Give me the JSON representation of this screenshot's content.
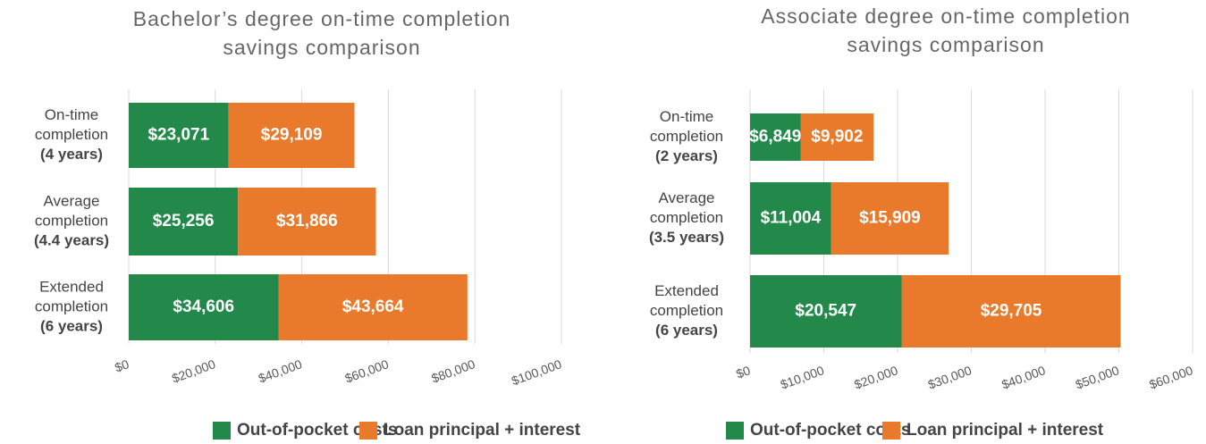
{
  "chart_data": [
    {
      "type": "stacked-barh",
      "title": [
        "Bachelor’s degree on-time completion",
        "savings comparison"
      ],
      "categories": [
        [
          "On-time",
          "completion",
          "(4 years)"
        ],
        [
          "Average",
          "completion",
          "(4.4 years)"
        ],
        [
          "Extended",
          "completion",
          "(6 years)"
        ]
      ],
      "series": [
        {
          "name": "Out-of-pocket costs",
          "color": "#23894b",
          "values": [
            23071,
            25256,
            34606
          ],
          "value_labels": [
            "$23,071",
            "$25,256",
            "$34,606"
          ]
        },
        {
          "name": "Loan principal + interest",
          "color": "#e97a2b",
          "values": [
            29109,
            31866,
            43664
          ],
          "value_labels": [
            "$29,109",
            "$31,866",
            "$43,664"
          ]
        }
      ],
      "xlim": [
        0,
        100000
      ],
      "xticks": [
        {
          "value": 0,
          "label": "$0"
        },
        {
          "value": 20000,
          "label": "$20,000"
        },
        {
          "value": 40000,
          "label": "$40,000"
        },
        {
          "value": 60000,
          "label": "$60,000"
        },
        {
          "value": 80000,
          "label": "$80,000"
        },
        {
          "value": 100000,
          "label": "$100,000"
        }
      ],
      "grid": true,
      "legend": "bottom"
    },
    {
      "type": "stacked-barh",
      "title": [
        "Associate degree on-time completion",
        "savings comparison"
      ],
      "categories": [
        [
          "On-time",
          "completion",
          "(2 years)"
        ],
        [
          "Average",
          "completion",
          "(3.5 years)"
        ],
        [
          "Extended",
          "completion",
          "(6 years)"
        ]
      ],
      "series": [
        {
          "name": "Out-of-pocket costs",
          "color": "#23894b",
          "values": [
            6849,
            11004,
            20547
          ],
          "value_labels": [
            "$6,849",
            "$11,004",
            "$20,547"
          ]
        },
        {
          "name": "Loan principal + interest",
          "color": "#e97a2b",
          "values": [
            9902,
            15909,
            29705
          ],
          "value_labels": [
            "$9,902",
            "$15,909",
            "$29,705"
          ]
        }
      ],
      "xlim": [
        0,
        60000
      ],
      "xticks": [
        {
          "value": 0,
          "label": "$0"
        },
        {
          "value": 10000,
          "label": "$10,000"
        },
        {
          "value": 20000,
          "label": "$20,000"
        },
        {
          "value": 30000,
          "label": "$30,000"
        },
        {
          "value": 40000,
          "label": "$40,000"
        },
        {
          "value": 50000,
          "label": "$50,000"
        },
        {
          "value": 60000,
          "label": "$60,000"
        }
      ],
      "grid": true,
      "legend": "bottom"
    }
  ]
}
